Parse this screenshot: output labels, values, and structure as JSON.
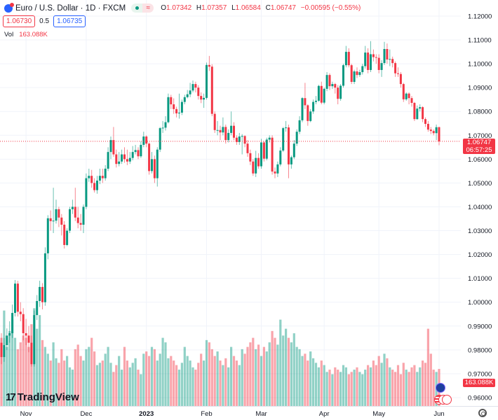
{
  "header": {
    "symbol_icon": "eur-usd-flag-icon",
    "title": "Euro / U.S. Dollar · 1D · FXCM",
    "market_status_icon": "market-open-dot-icon",
    "delay_icon": "approx-icon",
    "delay_glyph": "≈",
    "ohlc": {
      "o_label": "O",
      "o": "1.07342",
      "h_label": "H",
      "h": "1.07357",
      "l_label": "L",
      "l": "1.06584",
      "c_label": "C",
      "c": "1.06747",
      "change": "−0.00595 (−0.55%)"
    },
    "sell_price": "1.06730",
    "spread": "0.5",
    "buy_price": "1.06735",
    "vol_label": "Vol",
    "vol_value": "163.088K"
  },
  "price_label": {
    "price": "1.06747",
    "countdown": "06:57:25"
  },
  "volume_label": "163.088K",
  "logo_text": "TradingView",
  "colors": {
    "up": "#089981",
    "down": "#f23645",
    "grid": "#f0f3fa",
    "accent": "#2962ff"
  },
  "chart_data": {
    "type": "candlestick",
    "ylim": [
      0.955,
      1.125
    ],
    "y_ticks": [
      "1.12000",
      "1.11000",
      "1.10000",
      "1.09000",
      "1.08000",
      "1.07000",
      "1.06000",
      "1.05000",
      "1.04000",
      "1.03000",
      "1.02000",
      "1.01000",
      "1.00000",
      "0.99000",
      "0.98000",
      "0.97000",
      "0.96000"
    ],
    "x_ticks": [
      {
        "label": "Nov",
        "index": 9
      },
      {
        "label": "Dec",
        "index": 31
      },
      {
        "label": "2023",
        "index": 53,
        "bold": true
      },
      {
        "label": "Feb",
        "index": 75
      },
      {
        "label": "Mar",
        "index": 95
      },
      {
        "label": "Apr",
        "index": 118
      },
      {
        "label": "May",
        "index": 138
      },
      {
        "label": "Jun",
        "index": 160
      }
    ],
    "grid": true,
    "last_price": 1.06747,
    "volume_unit": "K",
    "candles": [
      [
        0.983,
        0.987,
        0.974,
        0.977
      ],
      [
        0.977,
        0.985,
        0.975,
        0.982
      ],
      [
        0.982,
        0.989,
        0.98,
        0.986
      ],
      [
        0.986,
        0.992,
        0.983,
        0.987
      ],
      [
        0.987,
        0.999,
        0.985,
        0.9955
      ],
      [
        0.9955,
        1.0093,
        0.994,
        1.0078
      ],
      [
        1.0078,
        1.009,
        0.994,
        0.996
      ],
      [
        0.996,
        1.0,
        0.992,
        0.995
      ],
      [
        0.995,
        0.9975,
        0.984,
        0.987
      ],
      [
        0.987,
        0.993,
        0.982,
        0.986
      ],
      [
        0.986,
        0.99,
        0.979,
        0.983
      ],
      [
        0.983,
        0.986,
        0.973,
        0.974
      ],
      [
        0.974,
        0.9965,
        0.973,
        0.9946
      ],
      [
        0.9946,
        1.003,
        0.9925,
        1.0005
      ],
      [
        1.0005,
        1.009,
        0.998,
        1.0064
      ],
      [
        1.0064,
        1.008,
        0.997,
        1.0
      ],
      [
        1.0,
        1.023,
        0.9985,
        1.0205
      ],
      [
        1.0205,
        1.0365,
        1.018,
        1.0352
      ],
      [
        1.0352,
        1.0385,
        1.03,
        1.034
      ],
      [
        1.034,
        1.048,
        1.029,
        1.0342
      ],
      [
        1.0342,
        1.043,
        1.033,
        1.039
      ],
      [
        1.039,
        1.04,
        1.0315,
        1.0355
      ],
      [
        1.0355,
        1.037,
        1.028,
        1.0325
      ],
      [
        1.0325,
        1.034,
        1.0225,
        1.024
      ],
      [
        1.024,
        1.031,
        1.0235,
        1.03
      ],
      [
        1.03,
        1.04,
        1.029,
        1.039
      ],
      [
        1.039,
        1.043,
        1.037,
        1.04
      ],
      [
        1.04,
        1.048,
        1.034,
        1.0355
      ],
      [
        1.0355,
        1.04,
        1.031,
        1.0332
      ],
      [
        1.0332,
        1.037,
        1.03,
        1.0325
      ],
      [
        1.0325,
        1.041,
        1.029,
        1.04
      ],
      [
        1.04,
        1.054,
        1.039,
        1.052
      ],
      [
        1.052,
        1.056,
        1.0505,
        1.053
      ],
      [
        1.053,
        1.0555,
        1.048,
        1.05
      ],
      [
        1.05,
        1.052,
        1.046,
        1.047
      ],
      [
        1.047,
        1.053,
        1.0455,
        1.051
      ],
      [
        1.051,
        1.056,
        1.0495,
        1.053
      ],
      [
        1.053,
        1.056,
        1.05,
        1.052
      ],
      [
        1.052,
        1.0575,
        1.051,
        1.056
      ],
      [
        1.056,
        1.065,
        1.055,
        1.063
      ],
      [
        1.063,
        1.0695,
        1.06,
        1.068
      ],
      [
        1.068,
        1.0735,
        1.061,
        1.062
      ],
      [
        1.062,
        1.064,
        1.0565,
        1.058
      ],
      [
        1.058,
        1.063,
        1.057,
        1.059
      ],
      [
        1.059,
        1.064,
        1.058,
        1.062
      ],
      [
        1.062,
        1.065,
        1.0585,
        1.06
      ],
      [
        1.06,
        1.064,
        1.0575,
        1.059
      ],
      [
        1.059,
        1.063,
        1.058,
        1.0605
      ],
      [
        1.0605,
        1.0655,
        1.0595,
        1.063
      ],
      [
        1.063,
        1.066,
        1.062,
        1.0638
      ],
      [
        1.0638,
        1.065,
        1.06,
        1.0612
      ],
      [
        1.0612,
        1.0675,
        1.0605,
        1.066
      ],
      [
        1.066,
        1.0715,
        1.065,
        1.0695
      ],
      [
        1.0695,
        1.07,
        1.065,
        1.0665
      ],
      [
        1.0665,
        1.067,
        1.0535,
        1.055
      ],
      [
        1.055,
        1.063,
        1.054,
        1.06
      ],
      [
        1.06,
        1.0615,
        1.05,
        1.052
      ],
      [
        1.052,
        1.065,
        1.0485,
        1.064
      ],
      [
        1.064,
        1.0735,
        1.063,
        1.073
      ],
      [
        1.073,
        1.076,
        1.071,
        1.0732
      ],
      [
        1.0732,
        1.078,
        1.072,
        1.0755
      ],
      [
        1.0755,
        1.0875,
        1.075,
        1.086
      ],
      [
        1.086,
        1.087,
        1.081,
        1.083
      ],
      [
        1.083,
        1.0855,
        1.079,
        1.081
      ],
      [
        1.081,
        1.082,
        1.0775,
        1.0792
      ],
      [
        1.0792,
        1.0875,
        1.077,
        1.0795
      ],
      [
        1.0795,
        1.085,
        1.0785,
        1.084
      ],
      [
        1.084,
        1.087,
        1.083,
        1.086
      ],
      [
        1.086,
        1.089,
        1.0855,
        1.0872
      ],
      [
        1.0872,
        1.092,
        1.086,
        1.0888
      ],
      [
        1.0888,
        1.093,
        1.088,
        1.0915
      ],
      [
        1.0915,
        1.0925,
        1.088,
        1.09
      ],
      [
        1.09,
        1.091,
        1.085,
        1.0865
      ],
      [
        1.0865,
        1.088,
        1.0835,
        1.085
      ],
      [
        1.085,
        1.0875,
        1.0815,
        1.0857
      ],
      [
        1.0857,
        1.1005,
        1.085,
        1.0995
      ],
      [
        1.0995,
        1.1033,
        1.097,
        1.0988
      ],
      [
        1.0988,
        1.0998,
        1.078,
        1.079
      ],
      [
        1.079,
        1.08,
        1.071,
        1.0722
      ],
      [
        1.0722,
        1.076,
        1.07,
        1.0722
      ],
      [
        1.0722,
        1.074,
        1.068,
        1.0712
      ],
      [
        1.0712,
        1.0775,
        1.07,
        1.0735
      ],
      [
        1.0735,
        1.0745,
        1.0665,
        1.068
      ],
      [
        1.068,
        1.0725,
        1.067,
        1.071
      ],
      [
        1.071,
        1.08,
        1.07,
        1.074
      ],
      [
        1.074,
        1.0755,
        1.068,
        1.069
      ],
      [
        1.069,
        1.07,
        1.066,
        1.0672
      ],
      [
        1.0672,
        1.071,
        1.066,
        1.0695
      ],
      [
        1.0695,
        1.0705,
        1.062,
        1.0697
      ],
      [
        1.0697,
        1.07,
        1.065,
        1.0665
      ],
      [
        1.0665,
        1.068,
        1.061,
        1.0625
      ],
      [
        1.0625,
        1.064,
        1.0575,
        1.059
      ],
      [
        1.059,
        1.06,
        1.053,
        1.054
      ],
      [
        1.054,
        1.0635,
        1.0525,
        1.0605
      ],
      [
        1.0605,
        1.0625,
        1.056,
        1.057
      ],
      [
        1.057,
        1.0685,
        1.056,
        1.067
      ],
      [
        1.067,
        1.0675,
        1.059,
        1.0602
      ],
      [
        1.0602,
        1.069,
        1.0595,
        1.0682
      ],
      [
        1.0682,
        1.07,
        1.067,
        1.069
      ],
      [
        1.069,
        1.07,
        1.0535,
        1.0548
      ],
      [
        1.0548,
        1.0565,
        1.052,
        1.054
      ],
      [
        1.054,
        1.059,
        1.0525,
        1.0578
      ],
      [
        1.0578,
        1.065,
        1.057,
        1.0636
      ],
      [
        1.0636,
        1.0735,
        1.063,
        1.073
      ],
      [
        1.073,
        1.076,
        1.0715,
        1.0733
      ],
      [
        1.0733,
        1.0745,
        1.052,
        1.0578
      ],
      [
        1.0578,
        1.0615,
        1.056,
        1.0608
      ],
      [
        1.0608,
        1.068,
        1.06,
        1.0665
      ],
      [
        1.0665,
        1.0725,
        1.0655,
        1.0715
      ],
      [
        1.0715,
        1.078,
        1.0705,
        1.0763
      ],
      [
        1.0763,
        1.086,
        1.0755,
        1.0856
      ],
      [
        1.0856,
        1.092,
        1.081,
        1.0826
      ],
      [
        1.0826,
        1.083,
        1.074,
        1.076
      ],
      [
        1.076,
        1.081,
        1.0755,
        1.08
      ],
      [
        1.08,
        1.085,
        1.079,
        1.084
      ],
      [
        1.084,
        1.0865,
        1.083,
        1.0845
      ],
      [
        1.0845,
        1.0912,
        1.084,
        1.0907
      ],
      [
        1.0907,
        1.0925,
        1.083,
        1.0837
      ],
      [
        1.0837,
        1.09,
        1.083,
        1.0895
      ],
      [
        1.0895,
        1.0965,
        1.0885,
        1.0953
      ],
      [
        1.0953,
        1.096,
        1.089,
        1.0906
      ],
      [
        1.0906,
        1.0925,
        1.0895,
        1.0915
      ],
      [
        1.0915,
        1.092,
        1.0875,
        1.09
      ],
      [
        1.09,
        1.091,
        1.083,
        1.0853
      ],
      [
        1.0853,
        1.0915,
        1.0845,
        1.0908
      ],
      [
        1.0908,
        1.1,
        1.09,
        1.0994
      ],
      [
        1.0994,
        1.1075,
        1.0985,
        1.105
      ],
      [
        1.105,
        1.1065,
        1.0985,
        1.0994
      ],
      [
        1.0994,
        1.1,
        1.0915,
        1.0924
      ],
      [
        1.0924,
        1.0975,
        1.0915,
        1.0968
      ],
      [
        1.0968,
        1.0985,
        1.094,
        1.0953
      ],
      [
        1.0953,
        1.0975,
        1.0945,
        1.0965
      ],
      [
        1.0965,
        1.1,
        1.0955,
        1.099
      ],
      [
        1.099,
        1.1075,
        1.098,
        1.1047
      ],
      [
        1.1047,
        1.1065,
        1.096,
        1.0974
      ],
      [
        1.0974,
        1.1095,
        1.0965,
        1.104
      ],
      [
        1.104,
        1.106,
        1.101,
        1.1028
      ],
      [
        1.1028,
        1.104,
        1.1,
        1.1025
      ],
      [
        1.1025,
        1.104,
        1.096,
        1.0974
      ],
      [
        1.0974,
        1.1015,
        1.0945,
        1.1003
      ],
      [
        1.1003,
        1.1092,
        1.0995,
        1.1062
      ],
      [
        1.1062,
        1.1085,
        1.1,
        1.1018
      ],
      [
        1.1018,
        1.106,
        1.099,
        1.102
      ],
      [
        1.102,
        1.103,
        1.0985,
        1.1003
      ],
      [
        1.1003,
        1.101,
        1.0945,
        1.096
      ],
      [
        1.096,
        1.0985,
        1.0945,
        1.0957
      ],
      [
        1.0957,
        1.0965,
        1.09,
        1.0915
      ],
      [
        1.0915,
        1.092,
        1.084,
        1.0851
      ],
      [
        1.0851,
        1.088,
        1.0845,
        1.0875
      ],
      [
        1.0875,
        1.088,
        1.083,
        1.0856
      ],
      [
        1.0856,
        1.0865,
        1.082,
        1.0836
      ],
      [
        1.0836,
        1.084,
        1.076,
        1.0768
      ],
      [
        1.0768,
        1.0825,
        1.0765,
        1.0812
      ],
      [
        1.0812,
        1.083,
        1.08,
        1.0818
      ],
      [
        1.0818,
        1.0822,
        1.0755,
        1.0768
      ],
      [
        1.0768,
        1.0775,
        1.0735,
        1.0748
      ],
      [
        1.0748,
        1.076,
        1.0715,
        1.0724
      ],
      [
        1.0724,
        1.0735,
        1.0705,
        1.0718
      ],
      [
        1.0718,
        1.0725,
        1.07,
        1.0709
      ],
      [
        1.0709,
        1.0745,
        1.068,
        1.0734
      ],
      [
        1.07342,
        1.07357,
        1.06584,
        1.06747
      ]
    ],
    "volumes": [
      300,
      420,
      260,
      330,
      380,
      300,
      250,
      280,
      310,
      300,
      260,
      360,
      430,
      340,
      400,
      290,
      260,
      230,
      200,
      280,
      210,
      190,
      250,
      200,
      220,
      170,
      160,
      250,
      270,
      220,
      200,
      250,
      260,
      300,
      240,
      180,
      190,
      200,
      230,
      260,
      190,
      150,
      180,
      220,
      160,
      260,
      200,
      170,
      190,
      210,
      160,
      140,
      230,
      240,
      220,
      260,
      250,
      200,
      230,
      300,
      280,
      210,
      220,
      200,
      180,
      160,
      190,
      260,
      220,
      200,
      170,
      160,
      190,
      230,
      200,
      290,
      280,
      250,
      220,
      240,
      200,
      180,
      210,
      170,
      260,
      220,
      200,
      180,
      250,
      230,
      260,
      280,
      300,
      250,
      270,
      220,
      260,
      240,
      280,
      330,
      300,
      270,
      380,
      310,
      340,
      300,
      280,
      320,
      260,
      250,
      220,
      230,
      200,
      240,
      210,
      190,
      170,
      200,
      180,
      150,
      160,
      140,
      170,
      160,
      150,
      180,
      170,
      140,
      150,
      160,
      170,
      150,
      140,
      160,
      180,
      170,
      200,
      180,
      220,
      190,
      230,
      210,
      170,
      160,
      150,
      180,
      140,
      190,
      160,
      150,
      170,
      180,
      150,
      170,
      200,
      190,
      340,
      230,
      160,
      150,
      163.088
    ]
  }
}
